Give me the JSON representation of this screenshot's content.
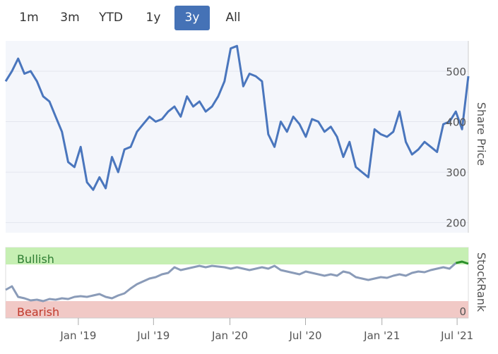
{
  "range_selector": {
    "buttons": [
      {
        "label": "1m",
        "active": false
      },
      {
        "label": "3m",
        "active": false
      },
      {
        "label": "YTD",
        "active": false
      },
      {
        "label": "1y",
        "active": false
      },
      {
        "label": "3y",
        "active": true
      },
      {
        "label": "All",
        "active": false
      }
    ]
  },
  "colors": {
    "accent": "#4572b6",
    "price_line": "#4a76bd",
    "rank_line": "#8a9bb8",
    "rank_latest": "#2a8f2a",
    "bullish_zone": "#c6efb3",
    "bearish_zone": "#f1c9c6",
    "bearish_text": "#c0392b",
    "bullish_text": "#2e7d32"
  },
  "chart_data": [
    {
      "type": "line",
      "name": "price",
      "ylabel": "Share Price",
      "ylim": [
        180,
        560
      ],
      "yticks": [
        200,
        300,
        400,
        500
      ],
      "x": [
        "2018-07",
        "2018-07",
        "2018-08",
        "2018-08",
        "2018-09",
        "2018-09",
        "2018-10",
        "2018-10",
        "2018-11",
        "2018-11",
        "2018-12",
        "2018-12",
        "2019-01",
        "2019-01",
        "2019-02",
        "2019-02",
        "2019-03",
        "2019-03",
        "2019-04",
        "2019-04",
        "2019-05",
        "2019-05",
        "2019-06",
        "2019-06",
        "2019-07",
        "2019-07",
        "2019-08",
        "2019-08",
        "2019-09",
        "2019-09",
        "2019-10",
        "2019-10",
        "2019-11",
        "2019-11",
        "2019-12",
        "2019-12",
        "2020-01",
        "2020-01",
        "2020-02",
        "2020-02",
        "2020-03",
        "2020-03",
        "2020-04",
        "2020-04",
        "2020-05",
        "2020-05",
        "2020-06",
        "2020-06",
        "2020-07",
        "2020-07",
        "2020-08",
        "2020-08",
        "2020-09",
        "2020-09",
        "2020-10",
        "2020-10",
        "2020-11",
        "2020-11",
        "2020-12",
        "2020-12",
        "2021-01",
        "2021-01",
        "2021-02",
        "2021-02",
        "2021-03",
        "2021-03",
        "2021-04",
        "2021-04",
        "2021-05",
        "2021-05",
        "2021-06",
        "2021-06",
        "2021-07",
        "2021-07",
        "2021-07"
      ],
      "values": [
        480,
        500,
        525,
        495,
        500,
        480,
        450,
        440,
        410,
        380,
        320,
        310,
        350,
        280,
        265,
        290,
        268,
        330,
        300,
        345,
        350,
        380,
        395,
        410,
        400,
        405,
        420,
        430,
        410,
        450,
        430,
        440,
        420,
        430,
        450,
        480,
        545,
        550,
        470,
        495,
        490,
        480,
        375,
        350,
        400,
        380,
        410,
        395,
        370,
        405,
        400,
        380,
        390,
        370,
        330,
        360,
        310,
        300,
        290,
        385,
        375,
        370,
        380,
        420,
        360,
        335,
        345,
        360,
        350,
        340,
        395,
        400,
        420,
        385,
        490
      ],
      "series": [
        {
          "name": "Share Price"
        }
      ]
    },
    {
      "type": "line",
      "name": "stockrank",
      "ylabel": "StockRank",
      "ylim": [
        0,
        100
      ],
      "yticks": [
        0
      ],
      "zones": [
        {
          "label": "Bullish",
          "from": 80,
          "to": 100
        },
        {
          "label": "Bearish",
          "from": 0,
          "to": 20
        }
      ],
      "x": [
        "2018-07",
        "2018-07",
        "2018-08",
        "2018-08",
        "2018-09",
        "2018-09",
        "2018-10",
        "2018-10",
        "2018-11",
        "2018-11",
        "2018-12",
        "2018-12",
        "2019-01",
        "2019-01",
        "2019-02",
        "2019-02",
        "2019-03",
        "2019-03",
        "2019-04",
        "2019-04",
        "2019-05",
        "2019-05",
        "2019-06",
        "2019-06",
        "2019-07",
        "2019-07",
        "2019-08",
        "2019-08",
        "2019-09",
        "2019-09",
        "2019-10",
        "2019-10",
        "2019-11",
        "2019-11",
        "2019-12",
        "2019-12",
        "2020-01",
        "2020-01",
        "2020-02",
        "2020-02",
        "2020-03",
        "2020-03",
        "2020-04",
        "2020-04",
        "2020-05",
        "2020-05",
        "2020-06",
        "2020-06",
        "2020-07",
        "2020-07",
        "2020-08",
        "2020-08",
        "2020-09",
        "2020-09",
        "2020-10",
        "2020-10",
        "2020-11",
        "2020-11",
        "2020-12",
        "2020-12",
        "2021-01",
        "2021-01",
        "2021-02",
        "2021-02",
        "2021-03",
        "2021-03",
        "2021-04",
        "2021-04",
        "2021-05",
        "2021-05",
        "2021-06",
        "2021-06",
        "2021-07",
        "2021-07",
        "2021-07"
      ],
      "values": [
        40,
        45,
        30,
        28,
        25,
        26,
        24,
        27,
        26,
        28,
        27,
        30,
        31,
        30,
        32,
        34,
        30,
        28,
        32,
        35,
        42,
        48,
        52,
        56,
        58,
        62,
        64,
        72,
        68,
        70,
        72,
        74,
        72,
        74,
        73,
        72,
        70,
        72,
        70,
        68,
        70,
        72,
        70,
        74,
        68,
        66,
        64,
        62,
        66,
        64,
        62,
        60,
        62,
        60,
        66,
        64,
        58,
        56,
        54,
        56,
        58,
        57,
        60,
        62,
        60,
        64,
        66,
        65,
        68,
        70,
        72,
        70,
        78,
        80,
        77
      ],
      "latest_from_index": 72,
      "series": [
        {
          "name": "StockRank"
        }
      ]
    }
  ],
  "x_axis": {
    "ticks": [
      {
        "label": "Jan '19",
        "at": "2019-01"
      },
      {
        "label": "Jul '19",
        "at": "2019-07"
      },
      {
        "label": "Jan '20",
        "at": "2020-01"
      },
      {
        "label": "Jul '20",
        "at": "2020-07"
      },
      {
        "label": "Jan '21",
        "at": "2021-01"
      },
      {
        "label": "Jul '21",
        "at": "2021-07"
      }
    ]
  }
}
